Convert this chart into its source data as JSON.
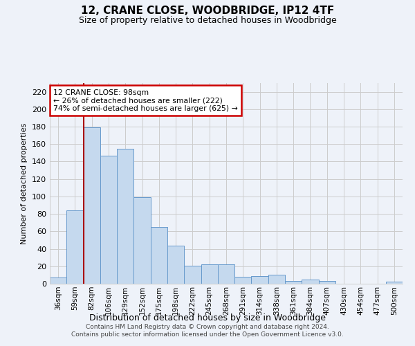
{
  "title": "12, CRANE CLOSE, WOODBRIDGE, IP12 4TF",
  "subtitle": "Size of property relative to detached houses in Woodbridge",
  "xlabel": "Distribution of detached houses by size in Woodbridge",
  "ylabel": "Number of detached properties",
  "categories": [
    "36sqm",
    "59sqm",
    "82sqm",
    "106sqm",
    "129sqm",
    "152sqm",
    "175sqm",
    "198sqm",
    "222sqm",
    "245sqm",
    "268sqm",
    "291sqm",
    "314sqm",
    "338sqm",
    "361sqm",
    "384sqm",
    "407sqm",
    "430sqm",
    "454sqm",
    "477sqm",
    "500sqm"
  ],
  "values": [
    7,
    84,
    179,
    147,
    155,
    99,
    65,
    44,
    21,
    22,
    22,
    8,
    9,
    10,
    3,
    5,
    3,
    0,
    0,
    0,
    2
  ],
  "bar_color": "#c5d9ee",
  "bar_edge_color": "#6699cc",
  "annotation_line1": "12 CRANE CLOSE: 98sqm",
  "annotation_line2": "← 26% of detached houses are smaller (222)",
  "annotation_line3": "74% of semi-detached houses are larger (625) →",
  "annotation_box_color": "#ffffff",
  "annotation_border_color": "#cc0000",
  "vline_color": "#aa0000",
  "grid_color": "#cccccc",
  "background_color": "#eef2f9",
  "footer_line1": "Contains HM Land Registry data © Crown copyright and database right 2024.",
  "footer_line2": "Contains public sector information licensed under the Open Government Licence v3.0.",
  "ylim": [
    0,
    230
  ],
  "yticks": [
    0,
    20,
    40,
    60,
    80,
    100,
    120,
    140,
    160,
    180,
    200,
    220
  ],
  "vline_bin_index": 2
}
